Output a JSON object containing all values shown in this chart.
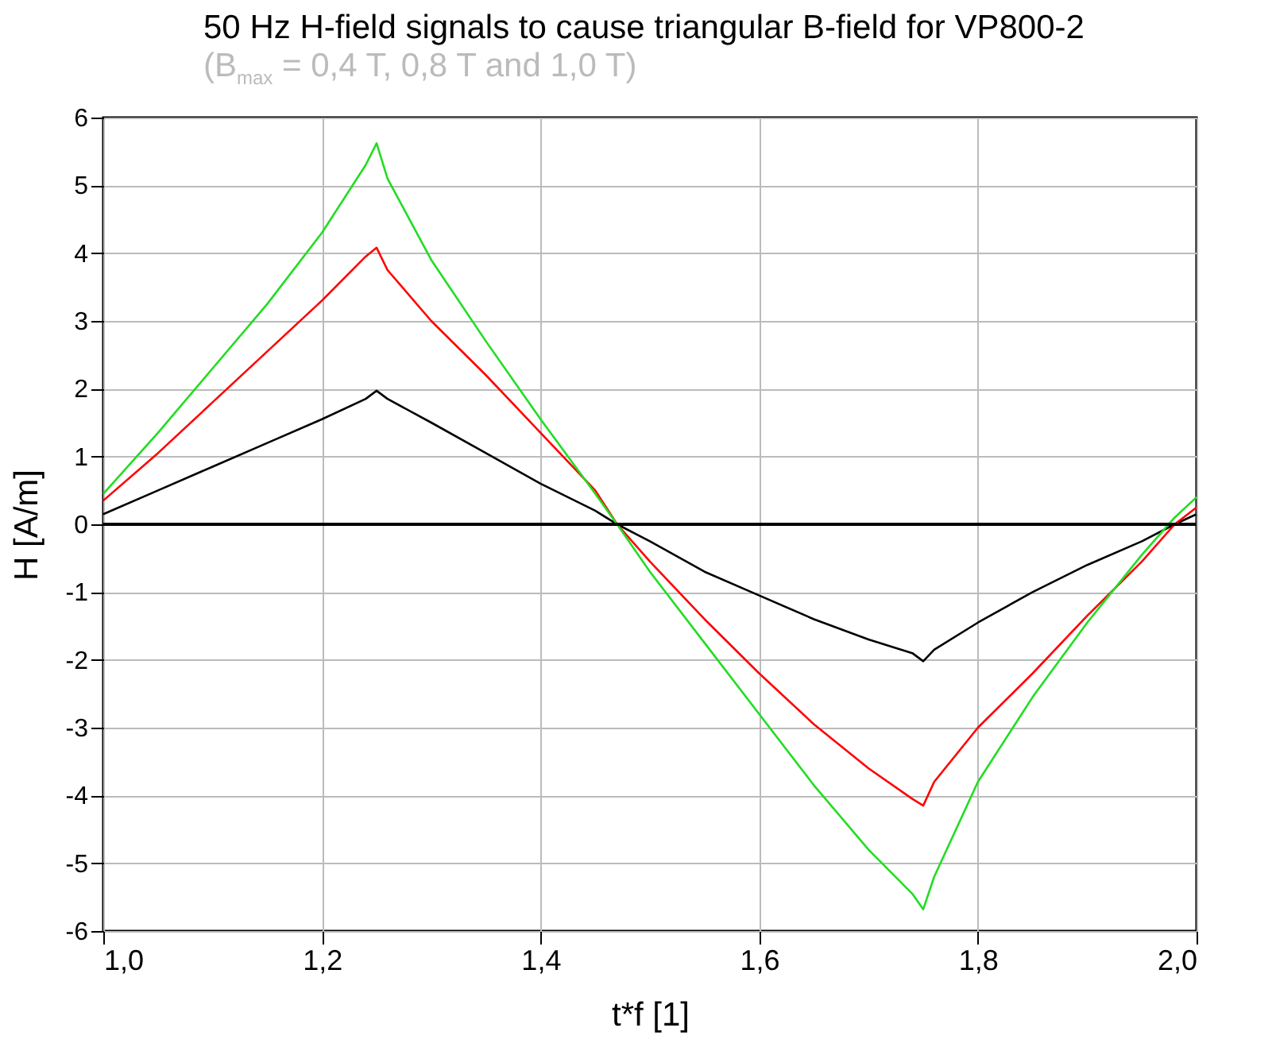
{
  "chart_data": {
    "type": "line",
    "title": "50 Hz H-field signals to cause triangular B-field for VP800-2",
    "subtitle": "(B$_{max}$ = 0,4 T, 0,8 T and 1,0 T)",
    "xlabel": "t*f [1]",
    "ylabel": "H [A/m]",
    "xlim": [
      1.0,
      2.0
    ],
    "xticks": [
      {
        "value": 1.0,
        "label": "1,0"
      },
      {
        "value": 1.2,
        "label": "1,2"
      },
      {
        "value": 1.4,
        "label": "1,4"
      },
      {
        "value": 1.6,
        "label": "1,6"
      },
      {
        "value": 1.8,
        "label": "1,8"
      },
      {
        "value": 2.0,
        "label": "2,0"
      }
    ],
    "ylim": [
      -6,
      6
    ],
    "yticks": [
      -6,
      -5,
      -4,
      -3,
      -2,
      -1,
      0,
      1,
      2,
      3,
      4,
      5,
      6
    ],
    "grid": true,
    "line_style": "solid",
    "ref_lines": [
      {
        "axis": "y",
        "value": 0,
        "color": "#000000"
      }
    ],
    "x": [
      1.0,
      1.05,
      1.1,
      1.15,
      1.2,
      1.24,
      1.25,
      1.26,
      1.3,
      1.35,
      1.4,
      1.45,
      1.47,
      1.5,
      1.55,
      1.6,
      1.65,
      1.7,
      1.74,
      1.75,
      1.76,
      1.8,
      1.85,
      1.9,
      1.95,
      1.98,
      2.0
    ],
    "series": [
      {
        "color": "#000000",
        "values": [
          0.15,
          0.5,
          0.85,
          1.2,
          1.55,
          1.85,
          1.97,
          1.85,
          1.5,
          1.05,
          0.6,
          0.2,
          0.0,
          -0.25,
          -0.7,
          -1.05,
          -1.4,
          -1.7,
          -1.9,
          -2.02,
          -1.85,
          -1.45,
          -1.0,
          -0.6,
          -0.25,
          0.0,
          0.15
        ]
      },
      {
        "color": "#ff0000",
        "values": [
          0.35,
          1.05,
          1.8,
          2.55,
          3.3,
          3.95,
          4.08,
          3.75,
          3.0,
          2.2,
          1.35,
          0.5,
          0.0,
          -0.55,
          -1.4,
          -2.2,
          -2.95,
          -3.6,
          -4.05,
          -4.15,
          -3.8,
          -3.0,
          -2.2,
          -1.35,
          -0.55,
          0.0,
          0.25
        ]
      },
      {
        "color": "#22dd22",
        "values": [
          0.45,
          1.35,
          2.3,
          3.25,
          4.3,
          5.3,
          5.62,
          5.1,
          3.9,
          2.7,
          1.55,
          0.45,
          0.0,
          -0.7,
          -1.75,
          -2.8,
          -3.85,
          -4.8,
          -5.45,
          -5.68,
          -5.2,
          -3.8,
          -2.55,
          -1.45,
          -0.45,
          0.1,
          0.4
        ]
      }
    ]
  }
}
